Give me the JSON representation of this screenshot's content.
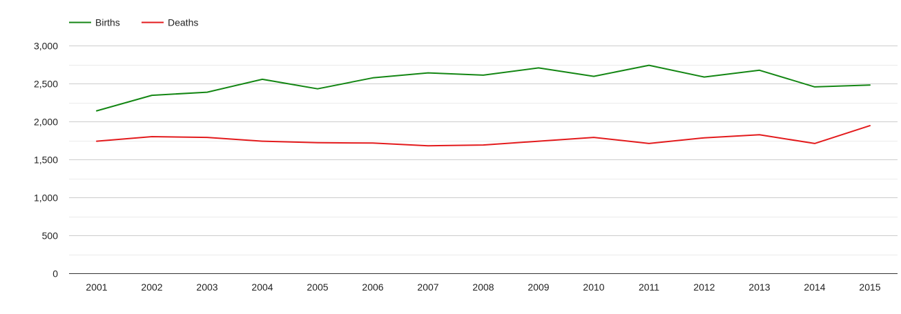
{
  "colors": {
    "births": "#138613",
    "deaths": "#e31a1c",
    "gridline": "#cccccc",
    "minor_gridline": "#ebebeb",
    "baseline": "#333333",
    "text": "#222222"
  },
  "chart_data": {
    "type": "line",
    "title": "",
    "xlabel": "",
    "ylabel": "",
    "x": [
      "2001",
      "2002",
      "2003",
      "2004",
      "2005",
      "2006",
      "2007",
      "2008",
      "2009",
      "2010",
      "2011",
      "2012",
      "2013",
      "2014",
      "2015"
    ],
    "series": [
      {
        "name": "Births",
        "color": "#138613",
        "values": [
          2140,
          2345,
          2385,
          2555,
          2430,
          2575,
          2640,
          2610,
          2705,
          2595,
          2740,
          2585,
          2675,
          2455,
          2480
        ]
      },
      {
        "name": "Deaths",
        "color": "#e31a1c",
        "values": [
          1740,
          1800,
          1790,
          1740,
          1720,
          1715,
          1680,
          1690,
          1740,
          1790,
          1710,
          1785,
          1825,
          1710,
          1945
        ]
      }
    ],
    "ylim": [
      0,
      3000
    ],
    "yticks": [
      0,
      500,
      1000,
      1500,
      2000,
      2500,
      3000
    ],
    "ytick_labels": [
      "0",
      "500",
      "1,000",
      "1,500",
      "2,000",
      "2,500",
      "3,000"
    ],
    "grid": true,
    "minor_grid": true,
    "legend": {
      "position": "top-left",
      "entries": [
        "Births",
        "Deaths"
      ]
    }
  }
}
